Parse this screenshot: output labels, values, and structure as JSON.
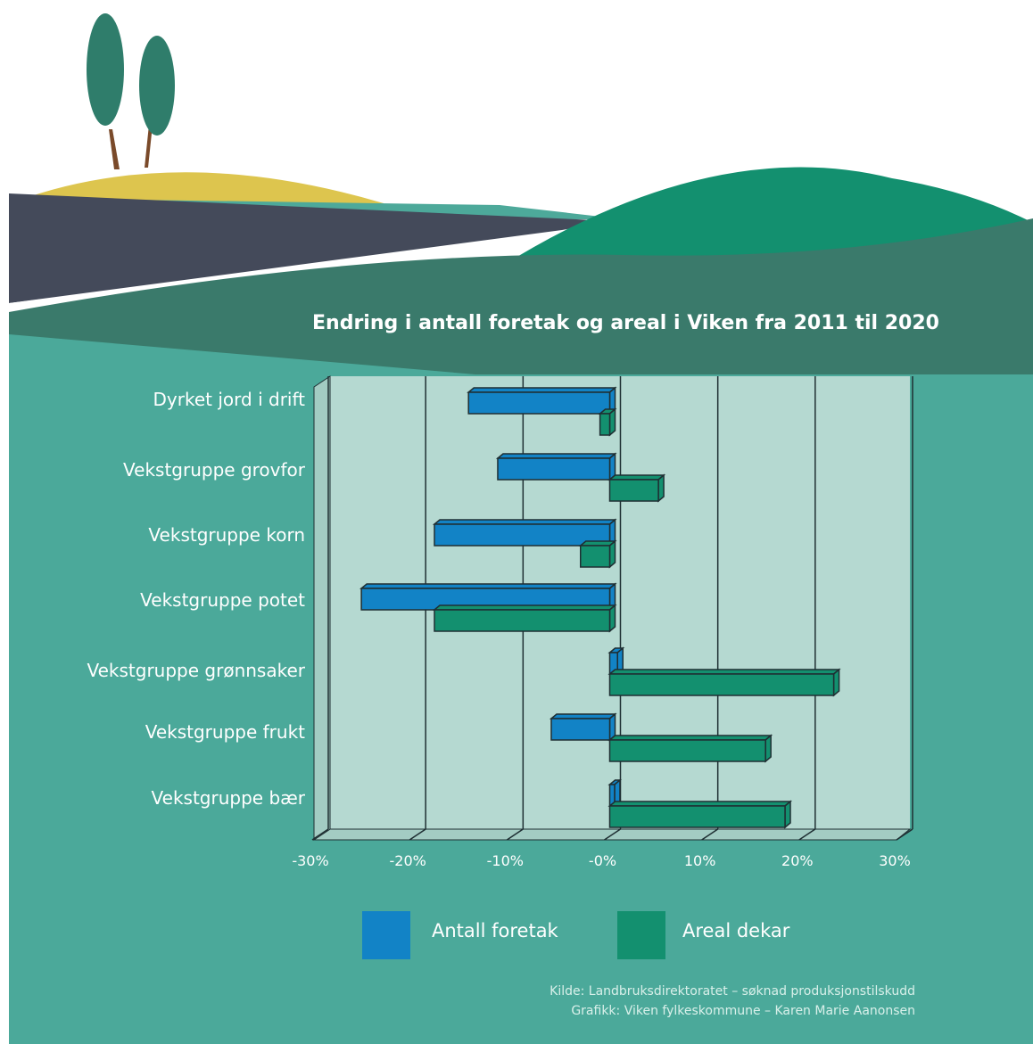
{
  "colors": {
    "antall": "#1283c6",
    "areal": "#13906f",
    "panel": "#b5d9d1",
    "background": "#4ba99a",
    "outline": "#1f2f33"
  },
  "chart_data": {
    "type": "bar",
    "orientation": "horizontal",
    "title": "Endring i antall foretak og areal i Viken fra 2011 til 2020",
    "categories": [
      "Dyrket jord i drift",
      "Vekstgruppe grovfor",
      "Vekstgruppe korn",
      "Vekstgruppe potet",
      "Vekstgruppe grønnsaker",
      "Vekstgruppe frukt",
      "Vekstgruppe bær"
    ],
    "series": [
      {
        "name": "Antall foretak",
        "color": "#1283c6",
        "values": [
          -14.5,
          -11.5,
          -18,
          -25.5,
          0.8,
          -6,
          0.5
        ]
      },
      {
        "name": "Areal dekar",
        "color": "#13906f",
        "values": [
          -1,
          5,
          -3,
          -18,
          23,
          16,
          18
        ]
      }
    ],
    "x_ticks": [
      "-30%",
      "-20%",
      "-10%",
      "-0%",
      "10%",
      "20%",
      "30%"
    ],
    "xlim": [
      -30,
      30
    ],
    "unit": "%",
    "grid": true,
    "legend_position": "bottom"
  },
  "credits": {
    "source": "Kilde: Landbruksdirektoratet – søknad produksjonstilskudd",
    "graphics": "Grafikk: Viken fylkeskommune – Karen Marie Aanonsen"
  }
}
